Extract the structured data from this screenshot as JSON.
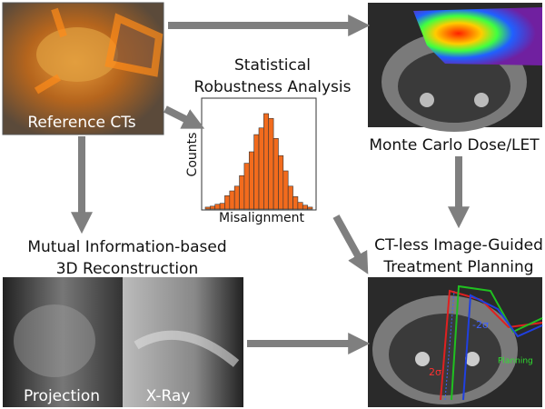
{
  "reference": {
    "label": "Reference CTs"
  },
  "robustness": {
    "title_lines": [
      "Statistical",
      "Robustness Analysis"
    ],
    "y_label": "Counts",
    "x_label": "Misalignment",
    "counts": [
      2,
      3,
      5,
      6,
      14,
      19,
      24,
      35,
      48,
      60,
      78,
      85,
      100,
      95,
      74,
      56,
      40,
      24,
      13,
      7,
      4,
      2
    ]
  },
  "dose": {
    "label": "Monte Carlo Dose/LET"
  },
  "reconstruction": {
    "title_lines": [
      "Mutual Information-based",
      "3D Reconstruction"
    ],
    "left_label": "Projection",
    "right_label": "X-Ray"
  },
  "planning": {
    "title_lines": [
      "CT-less Image-Guided",
      "Treatment Planning"
    ],
    "annotations": [
      "-2σ",
      "2σ",
      "Planning"
    ]
  }
}
